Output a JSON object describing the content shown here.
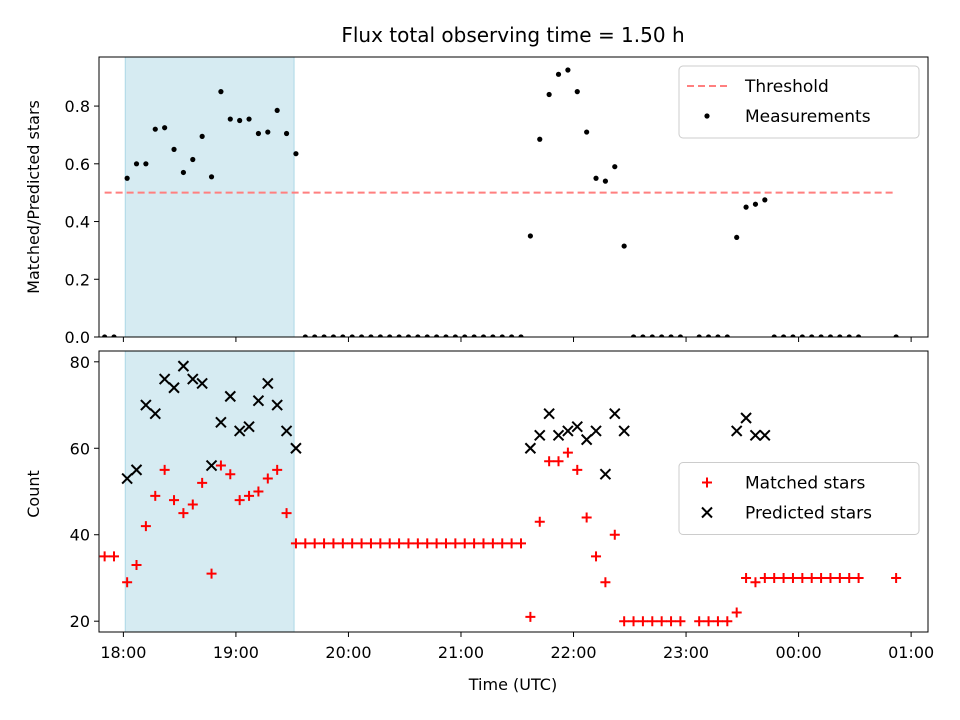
{
  "chart_data": [
    {
      "type": "scatter",
      "title": "Flux total observing time = 1.50 h",
      "ylabel": "Matched/Predicted stars",
      "xlabel": "",
      "ylim": [
        0,
        0.97
      ],
      "yticks": [
        "0.0",
        "0.2",
        "0.4",
        "0.6",
        "0.8"
      ],
      "xlim": [
        "17:47",
        "01:09"
      ],
      "shaded_interval": [
        "18:01",
        "19:31"
      ],
      "shade_color": "#add8e6",
      "grid": false,
      "legend_position": "upper right",
      "threshold": {
        "name": "Threshold",
        "value": 0.5,
        "x_range": [
          "17:50",
          "00:52"
        ],
        "color": "#ff7f7f",
        "style": "dashed"
      },
      "series": [
        {
          "name": "Measurements",
          "color": "#000000",
          "marker": "dot",
          "points": [
            [
              "17:50",
              0.0
            ],
            [
              "17:55",
              0.0
            ],
            [
              "18:02",
              0.55
            ],
            [
              "18:07",
              0.6
            ],
            [
              "18:12",
              0.6
            ],
            [
              "18:17",
              0.72
            ],
            [
              "18:22",
              0.725
            ],
            [
              "18:27",
              0.65
            ],
            [
              "18:32",
              0.57
            ],
            [
              "18:37",
              0.615
            ],
            [
              "18:42",
              0.695
            ],
            [
              "18:47",
              0.555
            ],
            [
              "18:52",
              0.85
            ],
            [
              "18:57",
              0.755
            ],
            [
              "19:02",
              0.75
            ],
            [
              "19:07",
              0.755
            ],
            [
              "19:12",
              0.705
            ],
            [
              "19:17",
              0.71
            ],
            [
              "19:22",
              0.785
            ],
            [
              "19:27",
              0.705
            ],
            [
              "19:32",
              0.635
            ],
            [
              "19:37",
              0.0
            ],
            [
              "19:42",
              0.0
            ],
            [
              "19:47",
              0.0
            ],
            [
              "19:52",
              0.0
            ],
            [
              "19:57",
              0.0
            ],
            [
              "20:02",
              0.0
            ],
            [
              "20:07",
              0.0
            ],
            [
              "20:12",
              0.0
            ],
            [
              "20:17",
              0.0
            ],
            [
              "20:22",
              0.0
            ],
            [
              "20:27",
              0.0
            ],
            [
              "20:32",
              0.0
            ],
            [
              "20:37",
              0.0
            ],
            [
              "20:42",
              0.0
            ],
            [
              "20:47",
              0.0
            ],
            [
              "20:52",
              0.0
            ],
            [
              "20:57",
              0.0
            ],
            [
              "21:02",
              0.0
            ],
            [
              "21:07",
              0.0
            ],
            [
              "21:12",
              0.0
            ],
            [
              "21:17",
              0.0
            ],
            [
              "21:22",
              0.0
            ],
            [
              "21:27",
              0.0
            ],
            [
              "21:32",
              0.0
            ],
            [
              "21:37",
              0.35
            ],
            [
              "21:42",
              0.685
            ],
            [
              "21:47",
              0.84
            ],
            [
              "21:52",
              0.91
            ],
            [
              "21:57",
              0.925
            ],
            [
              "22:02",
              0.85
            ],
            [
              "22:07",
              0.71
            ],
            [
              "22:12",
              0.55
            ],
            [
              "22:17",
              0.54
            ],
            [
              "22:22",
              0.59
            ],
            [
              "22:27",
              0.315
            ],
            [
              "22:32",
              0.0
            ],
            [
              "22:37",
              0.0
            ],
            [
              "22:42",
              0.0
            ],
            [
              "22:47",
              0.0
            ],
            [
              "22:52",
              0.0
            ],
            [
              "22:57",
              0.0
            ],
            [
              "23:07",
              0.0
            ],
            [
              "23:12",
              0.0
            ],
            [
              "23:17",
              0.0
            ],
            [
              "23:22",
              0.0
            ],
            [
              "23:27",
              0.345
            ],
            [
              "23:32",
              0.45
            ],
            [
              "23:37",
              0.46
            ],
            [
              "23:42",
              0.475
            ],
            [
              "23:47",
              0.0
            ],
            [
              "23:52",
              0.0
            ],
            [
              "23:57",
              0.0
            ],
            [
              "00:02",
              0.0
            ],
            [
              "00:07",
              0.0
            ],
            [
              "00:12",
              0.0
            ],
            [
              "00:17",
              0.0
            ],
            [
              "00:22",
              0.0
            ],
            [
              "00:27",
              0.0
            ],
            [
              "00:32",
              0.0
            ],
            [
              "00:52",
              0.0
            ]
          ]
        }
      ]
    },
    {
      "type": "scatter",
      "title": "",
      "xlabel": "Time (UTC)",
      "ylabel": "Count",
      "ylim": [
        17.5,
        82.5
      ],
      "yticks": [
        "20",
        "40",
        "60",
        "80"
      ],
      "xlim": [
        "17:47",
        "01:09"
      ],
      "xticks": [
        "18:00",
        "19:00",
        "20:00",
        "21:00",
        "22:00",
        "23:00",
        "00:00",
        "01:00"
      ],
      "shaded_interval": [
        "18:01",
        "19:31"
      ],
      "shade_color": "#add8e6",
      "grid": false,
      "legend_position": "center right",
      "series": [
        {
          "name": "Matched stars",
          "color": "#ff0000",
          "marker": "plus",
          "points": [
            [
              "17:50",
              35
            ],
            [
              "17:55",
              35
            ],
            [
              "18:02",
              29
            ],
            [
              "18:07",
              33
            ],
            [
              "18:12",
              42
            ],
            [
              "18:17",
              49
            ],
            [
              "18:22",
              55
            ],
            [
              "18:27",
              48
            ],
            [
              "18:32",
              45
            ],
            [
              "18:37",
              47
            ],
            [
              "18:42",
              52
            ],
            [
              "18:47",
              31
            ],
            [
              "18:52",
              56
            ],
            [
              "18:57",
              54
            ],
            [
              "19:02",
              48
            ],
            [
              "19:07",
              49
            ],
            [
              "19:12",
              50
            ],
            [
              "19:17",
              53
            ],
            [
              "19:22",
              55
            ],
            [
              "19:27",
              45
            ],
            [
              "19:32",
              38
            ],
            [
              "19:37",
              38
            ],
            [
              "19:42",
              38
            ],
            [
              "19:47",
              38
            ],
            [
              "19:52",
              38
            ],
            [
              "19:57",
              38
            ],
            [
              "20:02",
              38
            ],
            [
              "20:07",
              38
            ],
            [
              "20:12",
              38
            ],
            [
              "20:17",
              38
            ],
            [
              "20:22",
              38
            ],
            [
              "20:27",
              38
            ],
            [
              "20:32",
              38
            ],
            [
              "20:37",
              38
            ],
            [
              "20:42",
              38
            ],
            [
              "20:47",
              38
            ],
            [
              "20:52",
              38
            ],
            [
              "20:57",
              38
            ],
            [
              "21:02",
              38
            ],
            [
              "21:07",
              38
            ],
            [
              "21:12",
              38
            ],
            [
              "21:17",
              38
            ],
            [
              "21:22",
              38
            ],
            [
              "21:27",
              38
            ],
            [
              "21:32",
              38
            ],
            [
              "21:37",
              21
            ],
            [
              "21:42",
              43
            ],
            [
              "21:47",
              57
            ],
            [
              "21:52",
              57
            ],
            [
              "21:57",
              59
            ],
            [
              "22:02",
              55
            ],
            [
              "22:07",
              44
            ],
            [
              "22:12",
              35
            ],
            [
              "22:17",
              29
            ],
            [
              "22:22",
              40
            ],
            [
              "22:27",
              20
            ],
            [
              "22:32",
              20
            ],
            [
              "22:37",
              20
            ],
            [
              "22:42",
              20
            ],
            [
              "22:47",
              20
            ],
            [
              "22:52",
              20
            ],
            [
              "22:57",
              20
            ],
            [
              "23:07",
              20
            ],
            [
              "23:12",
              20
            ],
            [
              "23:17",
              20
            ],
            [
              "23:22",
              20
            ],
            [
              "23:27",
              22
            ],
            [
              "23:32",
              30
            ],
            [
              "23:37",
              29
            ],
            [
              "23:42",
              30
            ],
            [
              "23:47",
              30
            ],
            [
              "23:52",
              30
            ],
            [
              "23:57",
              30
            ],
            [
              "00:02",
              30
            ],
            [
              "00:07",
              30
            ],
            [
              "00:12",
              30
            ],
            [
              "00:17",
              30
            ],
            [
              "00:22",
              30
            ],
            [
              "00:27",
              30
            ],
            [
              "00:32",
              30
            ],
            [
              "00:52",
              30
            ]
          ]
        },
        {
          "name": "Predicted stars",
          "color": "#000000",
          "marker": "x",
          "points": [
            [
              "18:02",
              53
            ],
            [
              "18:07",
              55
            ],
            [
              "18:12",
              70
            ],
            [
              "18:17",
              68
            ],
            [
              "18:22",
              76
            ],
            [
              "18:27",
              74
            ],
            [
              "18:32",
              79
            ],
            [
              "18:37",
              76
            ],
            [
              "18:42",
              75
            ],
            [
              "18:47",
              56
            ],
            [
              "18:52",
              66
            ],
            [
              "18:57",
              72
            ],
            [
              "19:02",
              64
            ],
            [
              "19:07",
              65
            ],
            [
              "19:12",
              71
            ],
            [
              "19:17",
              75
            ],
            [
              "19:22",
              70
            ],
            [
              "19:27",
              64
            ],
            [
              "19:32",
              60
            ],
            [
              "21:37",
              60
            ],
            [
              "21:42",
              63
            ],
            [
              "21:47",
              68
            ],
            [
              "21:52",
              63
            ],
            [
              "21:57",
              64
            ],
            [
              "22:02",
              65
            ],
            [
              "22:07",
              62
            ],
            [
              "22:12",
              64
            ],
            [
              "22:17",
              54
            ],
            [
              "22:22",
              68
            ],
            [
              "22:27",
              64
            ],
            [
              "23:27",
              64
            ],
            [
              "23:32",
              67
            ],
            [
              "23:37",
              63
            ],
            [
              "23:42",
              63
            ]
          ]
        }
      ]
    }
  ]
}
